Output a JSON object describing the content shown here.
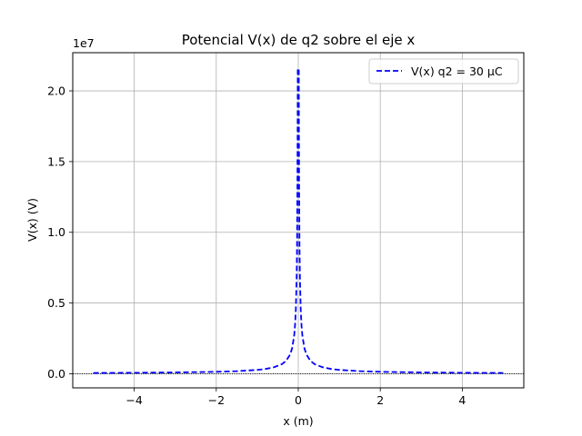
{
  "chart_data": {
    "type": "line",
    "title": "Potencial V(x) de q2 sobre el eje x",
    "xlabel": "x (m)",
    "ylabel": "V(x) (V)",
    "y_offset_label": "1e7",
    "xlim": [
      -5.5,
      5.5
    ],
    "ylim": [
      -0.1,
      2.27
    ],
    "y_scale_factor": 10000000,
    "x_ticks": [
      -4,
      -2,
      0,
      2,
      4
    ],
    "x_tick_labels": [
      "−4",
      "−2",
      "0",
      "2",
      "4"
    ],
    "y_ticks": [
      0.0,
      0.5,
      1.0,
      1.5,
      2.0
    ],
    "y_tick_labels": [
      "0.0",
      "0.5",
      "1.0",
      "1.5",
      "2.0"
    ],
    "grid": true,
    "legend_position": "top-right",
    "reference_line": {
      "y": 0,
      "style": "dotted",
      "color": "#000000"
    },
    "series": [
      {
        "name": "V(x) q2 = 30 μC",
        "color": "#0000ff",
        "style": "dashed",
        "x": [
          -5.0,
          -4.0,
          -3.0,
          -2.0,
          -1.5,
          -1.0,
          -0.8,
          -0.6,
          -0.4,
          -0.3,
          -0.2,
          -0.15,
          -0.1,
          -0.08,
          -0.06,
          -0.04,
          -0.03,
          -0.02,
          -0.015,
          -0.0125,
          0.0125,
          0.015,
          0.02,
          0.03,
          0.04,
          0.06,
          0.08,
          0.1,
          0.15,
          0.2,
          0.3,
          0.4,
          0.6,
          0.8,
          1.0,
          1.5,
          2.0,
          3.0,
          4.0,
          5.0
        ],
        "y": [
          0.0054,
          0.0067,
          0.009,
          0.0135,
          0.018,
          0.027,
          0.0337,
          0.045,
          0.0674,
          0.0899,
          0.1348,
          0.1798,
          0.2697,
          0.3371,
          0.4495,
          0.6743,
          0.899,
          1.3485,
          1.798,
          2.157,
          2.157,
          1.798,
          1.3485,
          0.899,
          0.6743,
          0.4495,
          0.3371,
          0.2697,
          0.1798,
          0.1348,
          0.0899,
          0.0674,
          0.045,
          0.0337,
          0.027,
          0.018,
          0.0135,
          0.009,
          0.0067,
          0.0054
        ]
      }
    ]
  }
}
